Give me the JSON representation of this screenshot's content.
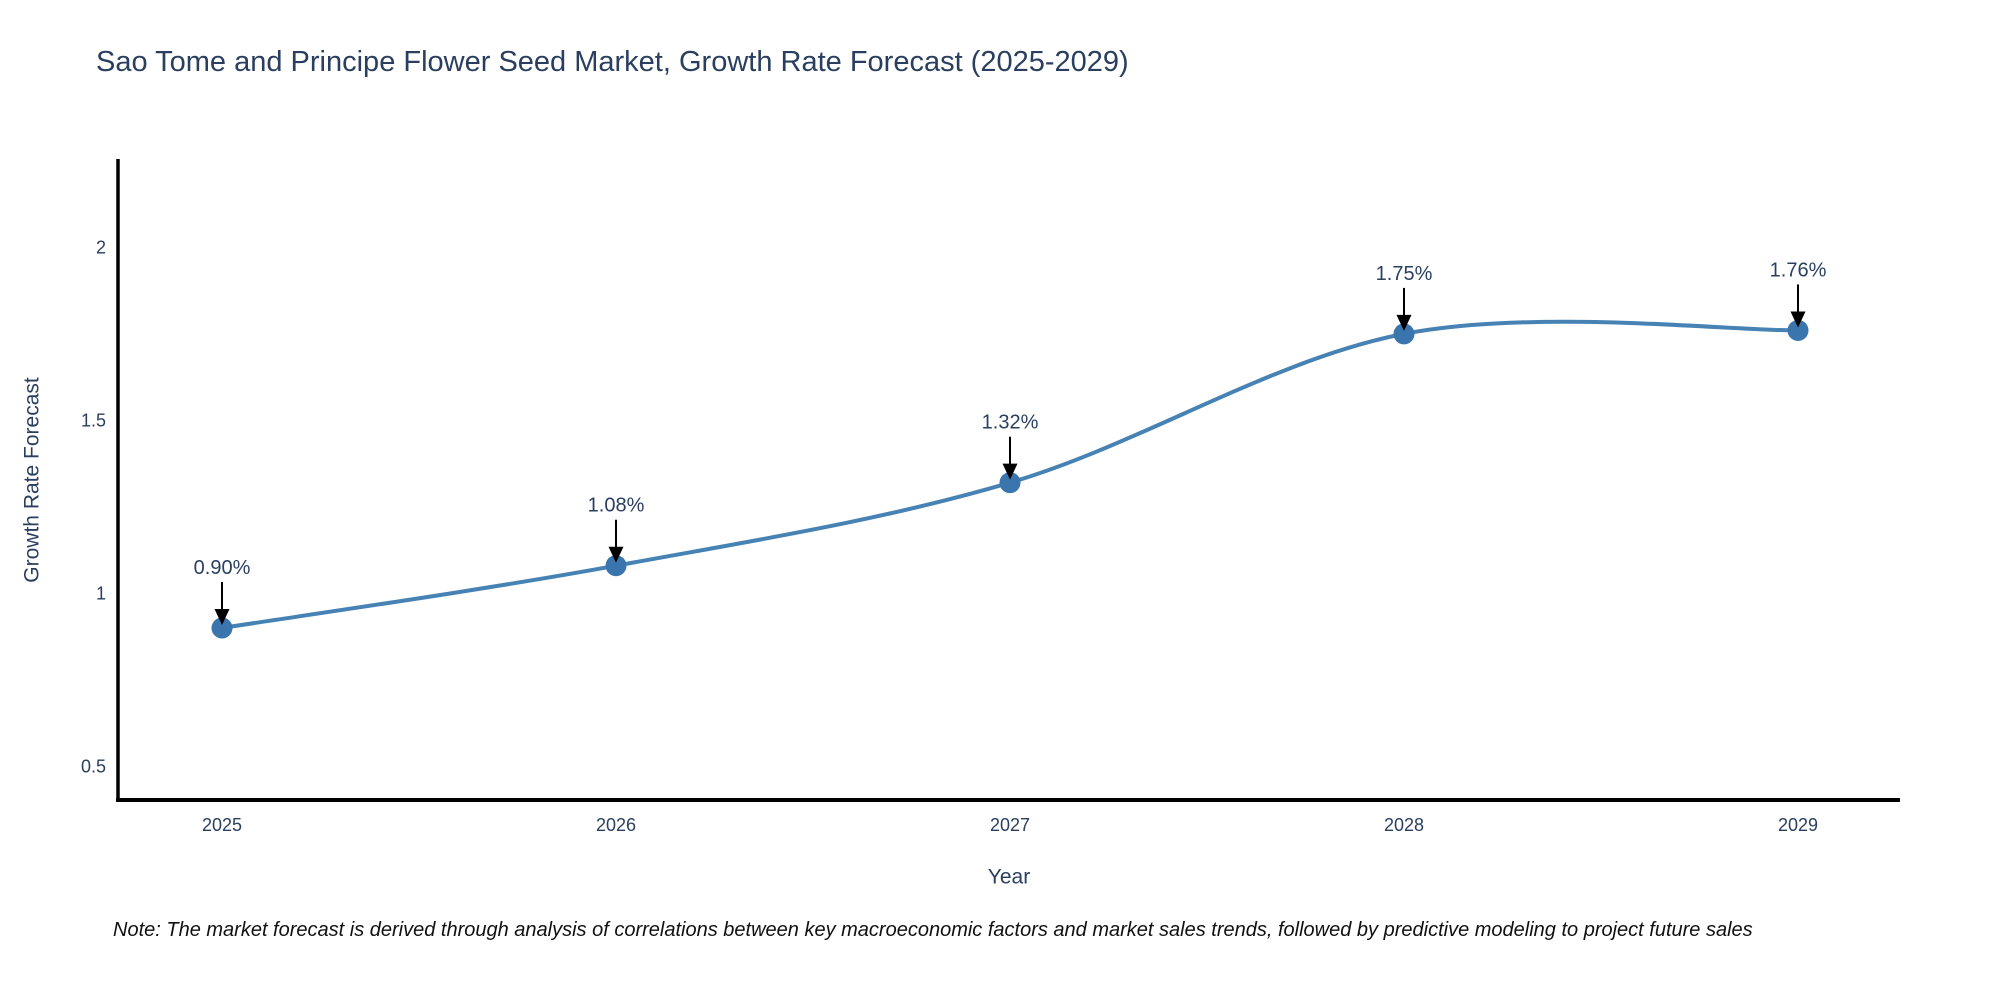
{
  "note": "Note: The market forecast is derived through analysis of correlations between key macroeconomic factors and market sales trends, followed by predictive modeling to project future sales",
  "chart_data": {
    "type": "line",
    "title": "Sao Tome and Principe Flower Seed Market, Growth Rate Forecast (2025-2029)",
    "xlabel": "Year",
    "ylabel": "Growth Rate Forecast",
    "x": [
      2025,
      2026,
      2027,
      2028,
      2029
    ],
    "xtick_labels": [
      "2025",
      "2026",
      "2027",
      "2028",
      "2029"
    ],
    "series": [
      {
        "name": "Growth Rate Forecast",
        "values": [
          0.9,
          1.08,
          1.32,
          1.75,
          1.76
        ]
      }
    ],
    "point_labels": [
      "0.90%",
      "1.08%",
      "1.32%",
      "1.75%",
      "1.76%"
    ],
    "ytick_values": [
      0.5,
      1,
      1.5,
      2
    ],
    "ytick_labels": [
      "0.5",
      "1",
      "1.5",
      "2"
    ],
    "ylim": [
      0.4,
      2.25
    ],
    "xlim": [
      2024.74,
      2029.26
    ],
    "line_shape": "spline",
    "markers": true,
    "grid": false,
    "legend_position": "none",
    "colors": {
      "line": "#4682b4",
      "marker": "#3a76ad",
      "axis": "#000000",
      "text": "#2a3f5f",
      "arrow": "#000000",
      "note_text": "#111111",
      "background": "#ffffff"
    }
  }
}
